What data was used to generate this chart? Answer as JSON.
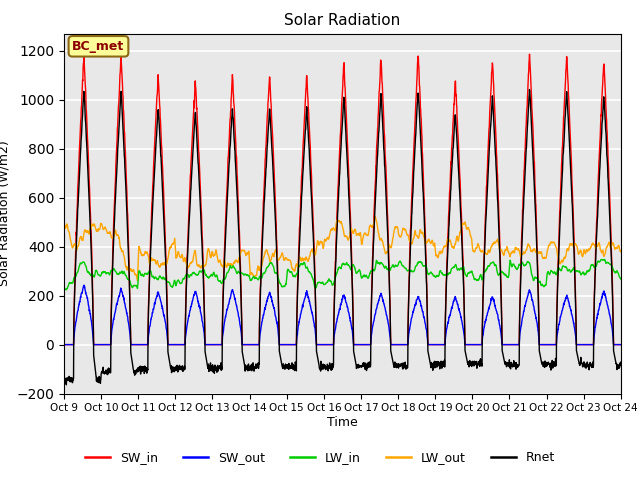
{
  "title": "Solar Radiation",
  "ylabel": "Solar Radiation (W/m2)",
  "xlabel": "Time",
  "ylim": [
    -200,
    1270
  ],
  "yticks": [
    -200,
    0,
    200,
    400,
    600,
    800,
    1000,
    1200
  ],
  "xtick_labels": [
    "Oct 9",
    "Oct 10",
    "Oct 11",
    "Oct 12",
    "Oct 13",
    "Oct 14",
    "Oct 15",
    "Oct 16",
    "Oct 17",
    "Oct 18",
    "Oct 19",
    "Oct 20",
    "Oct 21",
    "Oct 22",
    "Oct 23",
    "Oct 24"
  ],
  "colors": {
    "SW_in": "#ff0000",
    "SW_out": "#0000ff",
    "LW_in": "#00cc00",
    "LW_out": "#ffa500",
    "Rnet": "#000000"
  },
  "annotation_text": "BC_met",
  "annotation_color": "#8B0000",
  "annotation_bg": "#ffff99",
  "background_color": "#ffffff",
  "plot_bg": "#e8e8e8",
  "grid_color": "#ffffff",
  "n_days": 15,
  "pts_per_day": 144,
  "SW_in_peaks": [
    1180,
    1180,
    1100,
    1080,
    1100,
    1100,
    1100,
    1150,
    1170,
    1180,
    1080,
    1160,
    1190,
    1180,
    1160
  ],
  "SW_out_peaks": [
    245,
    230,
    215,
    220,
    225,
    215,
    215,
    205,
    210,
    200,
    195,
    195,
    225,
    200,
    220
  ],
  "LW_in_base": [
    275,
    270,
    265,
    270,
    278,
    272,
    278,
    285,
    298,
    303,
    288,
    285,
    288,
    292,
    308
  ],
  "LW_out_base": [
    450,
    390,
    360,
    345,
    350,
    340,
    360,
    460,
    445,
    440,
    425,
    390,
    378,
    385,
    395
  ],
  "Rnet_night": [
    -145,
    -110,
    -100,
    -95,
    -95,
    -90,
    -90,
    -90,
    -85,
    -85,
    -80,
    -80,
    -85,
    -80,
    -85
  ]
}
